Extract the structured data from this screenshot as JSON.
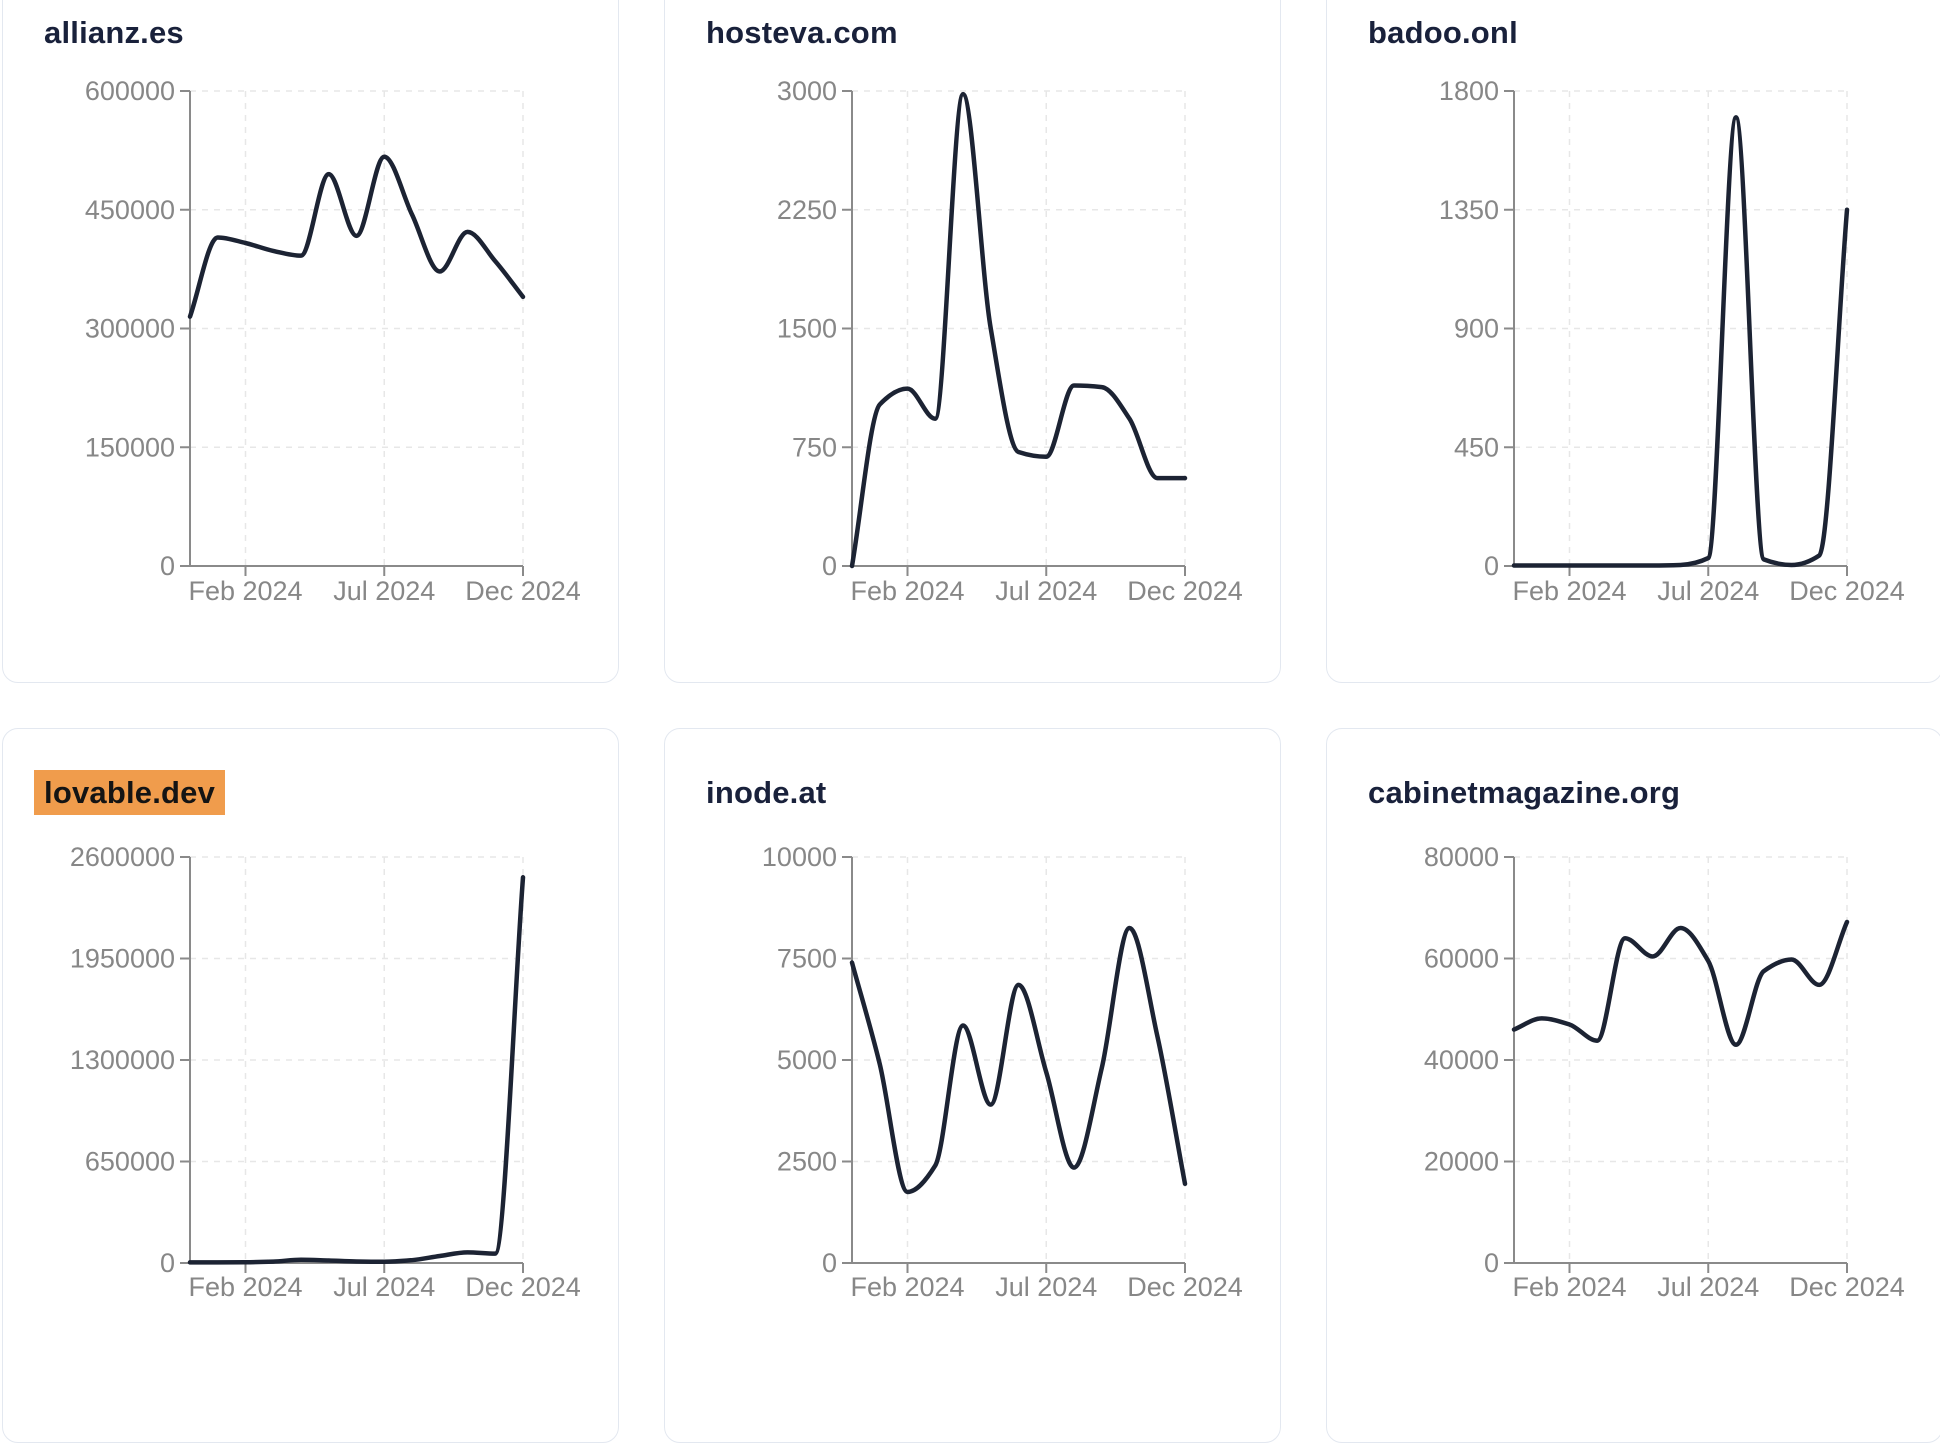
{
  "style": {
    "page_bg": "#ffffff",
    "card_bg": "#ffffff",
    "card_border": "#e3e8f0",
    "title_color": "#19213b",
    "highlight_bg": "#f09c4c",
    "highlight_text": "#141414",
    "line_color": "#1c2333",
    "axis_color": "#8a8a8a",
    "tick_label_color": "#878787",
    "grid_color": "#e7e7e7"
  },
  "chart_data": [
    {
      "type": "line",
      "title": "allianz.es",
      "title_highlighted": false,
      "x": [
        "Dec 2023",
        "Jan 2024",
        "Feb 2024",
        "Mar 2024",
        "Apr 2024",
        "May 2024",
        "Jun 2024",
        "Jul 2024",
        "Aug 2024",
        "Sep 2024",
        "Oct 2024",
        "Nov 2024",
        "Dec 2024"
      ],
      "values": [
        315000,
        415000,
        408000,
        398000,
        392000,
        495000,
        417000,
        517000,
        444000,
        372000,
        422000,
        385000,
        340000
      ],
      "y_ticks": [
        0,
        150000,
        300000,
        450000,
        600000
      ],
      "ylim": [
        0,
        600000
      ],
      "x_tick_labels": [
        "Feb 2024",
        "Jul 2024",
        "Dec 2024"
      ],
      "x_tick_indices": [
        2,
        7,
        12
      ],
      "grid": "dashed",
      "legend": "none"
    },
    {
      "type": "line",
      "title": "hosteva.com",
      "title_highlighted": false,
      "x": [
        "Dec 2023",
        "Jan 2024",
        "Feb 2024",
        "Mar 2024",
        "Apr 2024",
        "May 2024",
        "Jun 2024",
        "Jul 2024",
        "Aug 2024",
        "Sep 2024",
        "Oct 2024",
        "Nov 2024",
        "Dec 2024"
      ],
      "values": [
        0,
        1020,
        1120,
        930,
        2980,
        1500,
        720,
        690,
        1140,
        1130,
        930,
        555,
        555
      ],
      "y_ticks": [
        0,
        750,
        1500,
        2250,
        3000
      ],
      "ylim": [
        0,
        3000
      ],
      "x_tick_labels": [
        "Feb 2024",
        "Jul 2024",
        "Dec 2024"
      ],
      "x_tick_indices": [
        2,
        7,
        12
      ],
      "grid": "dashed",
      "legend": "none"
    },
    {
      "type": "line",
      "title": "badoo.onl",
      "title_highlighted": false,
      "x": [
        "Dec 2023",
        "Jan 2024",
        "Feb 2024",
        "Mar 2024",
        "Apr 2024",
        "May 2024",
        "Jun 2024",
        "Jul 2024",
        "Aug 2024",
        "Sep 2024",
        "Oct 2024",
        "Nov 2024",
        "Dec 2024"
      ],
      "values": [
        2,
        2,
        2,
        2,
        2,
        2,
        4,
        30,
        1700,
        25,
        4,
        40,
        1350
      ],
      "y_ticks": [
        0,
        450,
        900,
        1350,
        1800
      ],
      "ylim": [
        0,
        1800
      ],
      "x_tick_labels": [
        "Feb 2024",
        "Jul 2024",
        "Dec 2024"
      ],
      "x_tick_indices": [
        2,
        7,
        12
      ],
      "grid": "dashed",
      "legend": "none"
    },
    {
      "type": "line",
      "title": "lovable.dev",
      "title_highlighted": true,
      "x": [
        "Dec 2023",
        "Jan 2024",
        "Feb 2024",
        "Mar 2024",
        "Apr 2024",
        "May 2024",
        "Jun 2024",
        "Jul 2024",
        "Aug 2024",
        "Sep 2024",
        "Oct 2024",
        "Nov 2024",
        "Dec 2024"
      ],
      "values": [
        4000,
        4000,
        5000,
        9000,
        21000,
        16000,
        10000,
        8000,
        18000,
        45000,
        68000,
        60000,
        2470000
      ],
      "y_ticks": [
        0,
        650000,
        1300000,
        1950000,
        2600000
      ],
      "ylim": [
        0,
        2600000
      ],
      "x_tick_labels": [
        "Feb 2024",
        "Jul 2024",
        "Dec 2024"
      ],
      "x_tick_indices": [
        2,
        7,
        12
      ],
      "grid": "dashed",
      "legend": "none"
    },
    {
      "type": "line",
      "title": "inode.at",
      "title_highlighted": false,
      "x": [
        "Dec 2023",
        "Jan 2024",
        "Feb 2024",
        "Mar 2024",
        "Apr 2024",
        "May 2024",
        "Jun 2024",
        "Jul 2024",
        "Aug 2024",
        "Sep 2024",
        "Oct 2024",
        "Nov 2024",
        "Dec 2024"
      ],
      "values": [
        7400,
        4900,
        1750,
        2400,
        5850,
        3900,
        6850,
        4700,
        2350,
        4800,
        8250,
        5600,
        1950
      ],
      "y_ticks": [
        0,
        2500,
        5000,
        7500,
        10000
      ],
      "ylim": [
        0,
        10000
      ],
      "x_tick_labels": [
        "Feb 2024",
        "Jul 2024",
        "Dec 2024"
      ],
      "x_tick_indices": [
        2,
        7,
        12
      ],
      "grid": "dashed",
      "legend": "none"
    },
    {
      "type": "line",
      "title": "cabinetmagazine.org",
      "title_highlighted": false,
      "x": [
        "Dec 2023",
        "Jan 2024",
        "Feb 2024",
        "Mar 2024",
        "Apr 2024",
        "May 2024",
        "Jun 2024",
        "Jul 2024",
        "Aug 2024",
        "Sep 2024",
        "Oct 2024",
        "Nov 2024",
        "Dec 2024"
      ],
      "values": [
        46000,
        48200,
        47000,
        43800,
        64000,
        60400,
        66000,
        59500,
        43000,
        57500,
        59800,
        54800,
        67200
      ],
      "y_ticks": [
        0,
        20000,
        40000,
        60000,
        80000
      ],
      "ylim": [
        0,
        80000
      ],
      "x_tick_labels": [
        "Feb 2024",
        "Jul 2024",
        "Dec 2024"
      ],
      "x_tick_indices": [
        2,
        7,
        12
      ],
      "grid": "dashed",
      "legend": "none"
    }
  ]
}
